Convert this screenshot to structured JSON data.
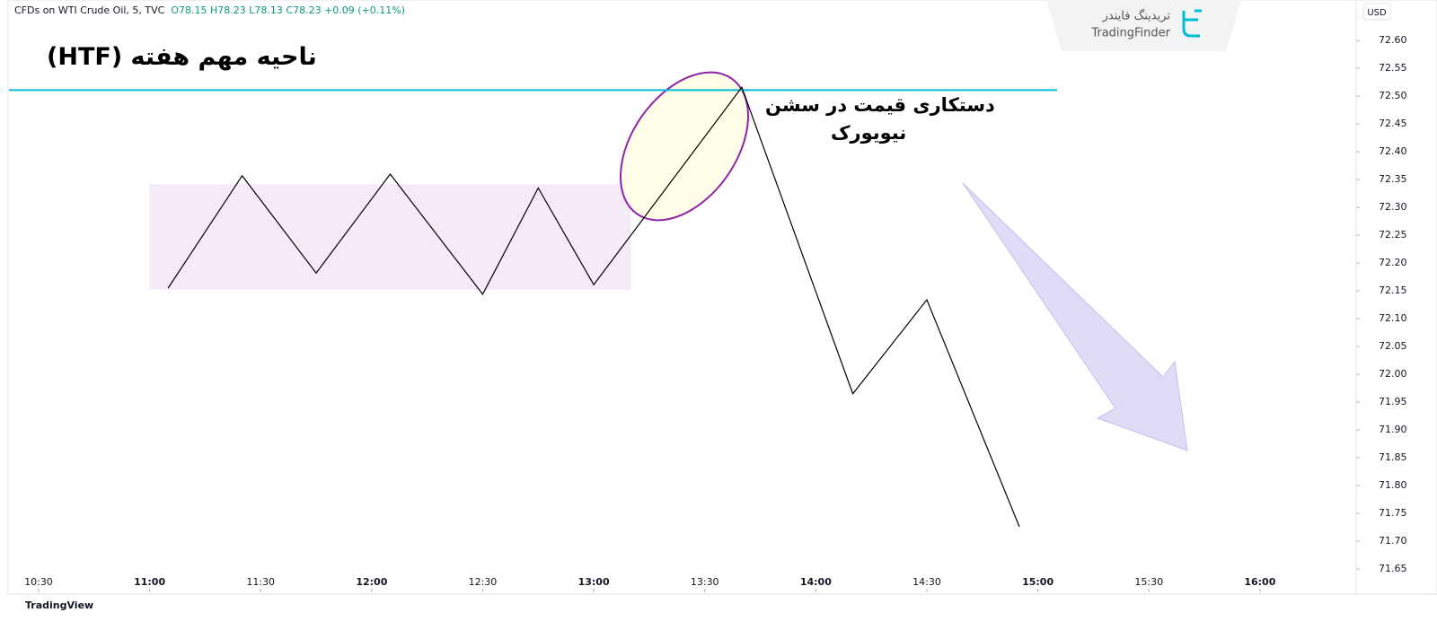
{
  "header": {
    "symbol": "CFDs on WTI Crude Oil, 5, TVC",
    "open": "O78.15",
    "high": "H78.23",
    "low": "L78.13",
    "close": "C78.23",
    "change": "+0.09 (+0.11%)",
    "currency": "USD"
  },
  "logo": {
    "fa": "تریدینگ فایندر",
    "en": "TradingFinder"
  },
  "footer": "TradingView",
  "chart_data": {
    "type": "line",
    "color": "#000000",
    "x": [
      665,
      685,
      705,
      725,
      750,
      765,
      780,
      820,
      850,
      870,
      895
    ],
    "values": [
      72.155,
      72.357,
      72.182,
      72.36,
      72.144,
      72.335,
      72.161,
      72.516,
      71.965,
      72.134,
      71.726
    ],
    "xlim": [
      622,
      986
    ],
    "ylim": [
      71.608,
      72.673
    ],
    "xticks": [
      {
        "value": 630,
        "label": "10:30"
      },
      {
        "value": 660,
        "label": "11:00"
      },
      {
        "value": 690,
        "label": "11:30"
      },
      {
        "value": 720,
        "label": "12:00"
      },
      {
        "value": 750,
        "label": "12:30"
      },
      {
        "value": 780,
        "label": "13:00"
      },
      {
        "value": 810,
        "label": "13:30"
      },
      {
        "value": 840,
        "label": "14:00"
      },
      {
        "value": 870,
        "label": "14:30"
      },
      {
        "value": 900,
        "label": "15:00"
      },
      {
        "value": 930,
        "label": "15:30"
      },
      {
        "value": 960,
        "label": "16:00"
      }
    ],
    "yticks": [
      71.65,
      {
        "value": 71.7,
        "label": "71.70"
      },
      71.75,
      {
        "value": 71.8,
        "label": "71.80"
      },
      71.85,
      {
        "value": 71.9,
        "label": "71.90"
      },
      71.95,
      {
        "value": 72,
        "label": "72.00"
      },
      72.05,
      {
        "value": 72.1,
        "label": "72.10"
      },
      72.15,
      {
        "value": 72.2,
        "label": "72.20"
      },
      72.25,
      {
        "value": 72.3,
        "label": "72.30"
      },
      72.35,
      {
        "value": 72.4,
        "label": "72.40"
      },
      72.45,
      {
        "value": 72.5,
        "label": "72.50"
      },
      72.55,
      {
        "value": 72.6,
        "label": "72.60"
      }
    ],
    "level": 72.511,
    "level_color": "#00bcd4",
    "range_box": {
      "x": [
        660,
        790
      ],
      "y": [
        72.152,
        72.342
      ]
    },
    "annotations": [
      "ناحیه مهم هفته (HTF)",
      "دستکاری قیمت در سشن",
      "نیویورک"
    ]
  }
}
